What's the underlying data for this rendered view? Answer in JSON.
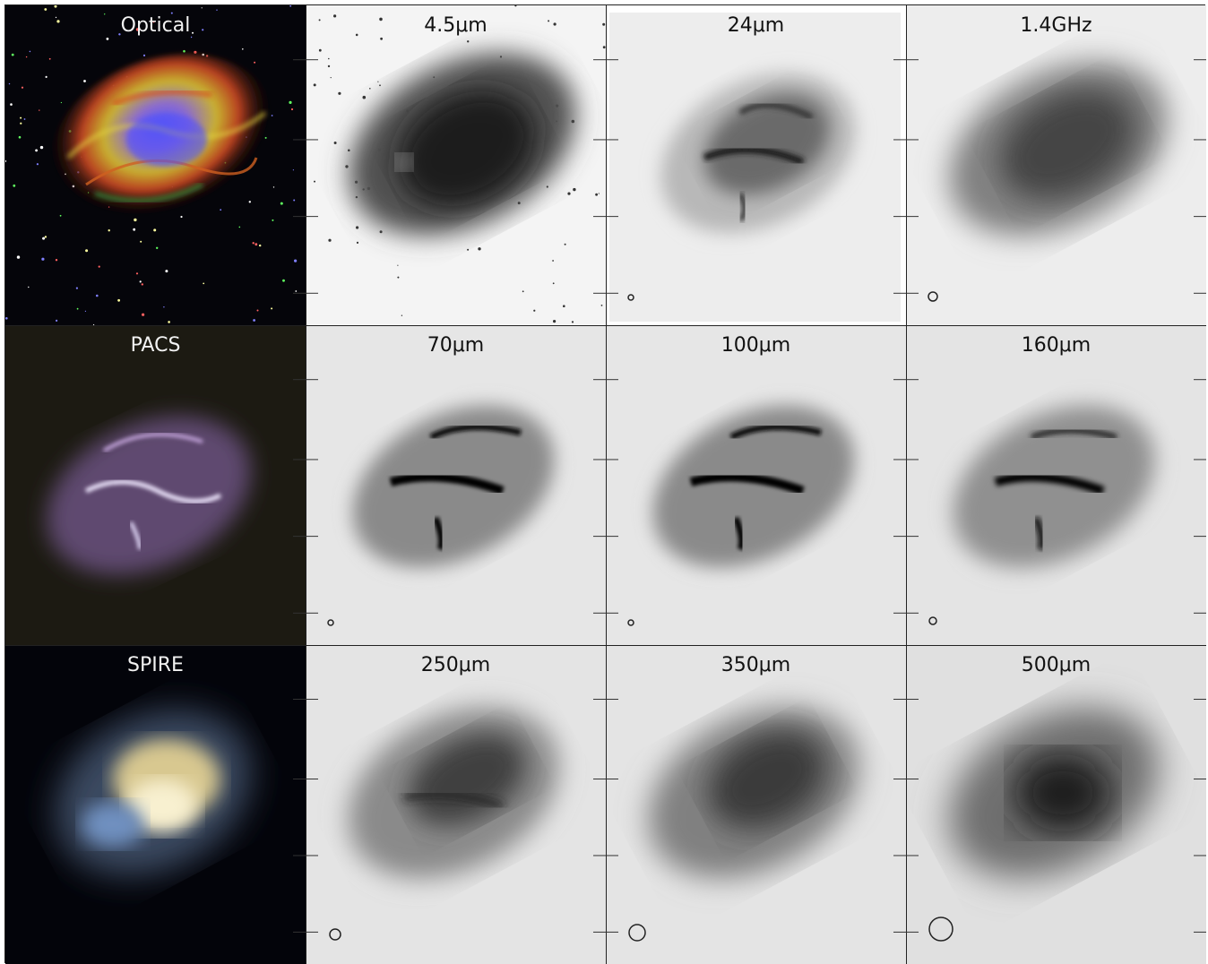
{
  "panels": [
    {
      "label": "Optical",
      "theme": "optical"
    },
    {
      "label": "4.5μm",
      "theme": "gray"
    },
    {
      "label": "24μm",
      "theme": "gray"
    },
    {
      "label": "1.4GHz",
      "theme": "gray"
    },
    {
      "label": "PACS",
      "theme": "pacs"
    },
    {
      "label": "70μm",
      "theme": "gray"
    },
    {
      "label": "100μm",
      "theme": "gray"
    },
    {
      "label": "160μm",
      "theme": "gray"
    },
    {
      "label": "SPIRE",
      "theme": "spire"
    },
    {
      "label": "250μm",
      "theme": "gray"
    },
    {
      "label": "350μm",
      "theme": "gray"
    },
    {
      "label": "500μm",
      "theme": "gray"
    }
  ]
}
